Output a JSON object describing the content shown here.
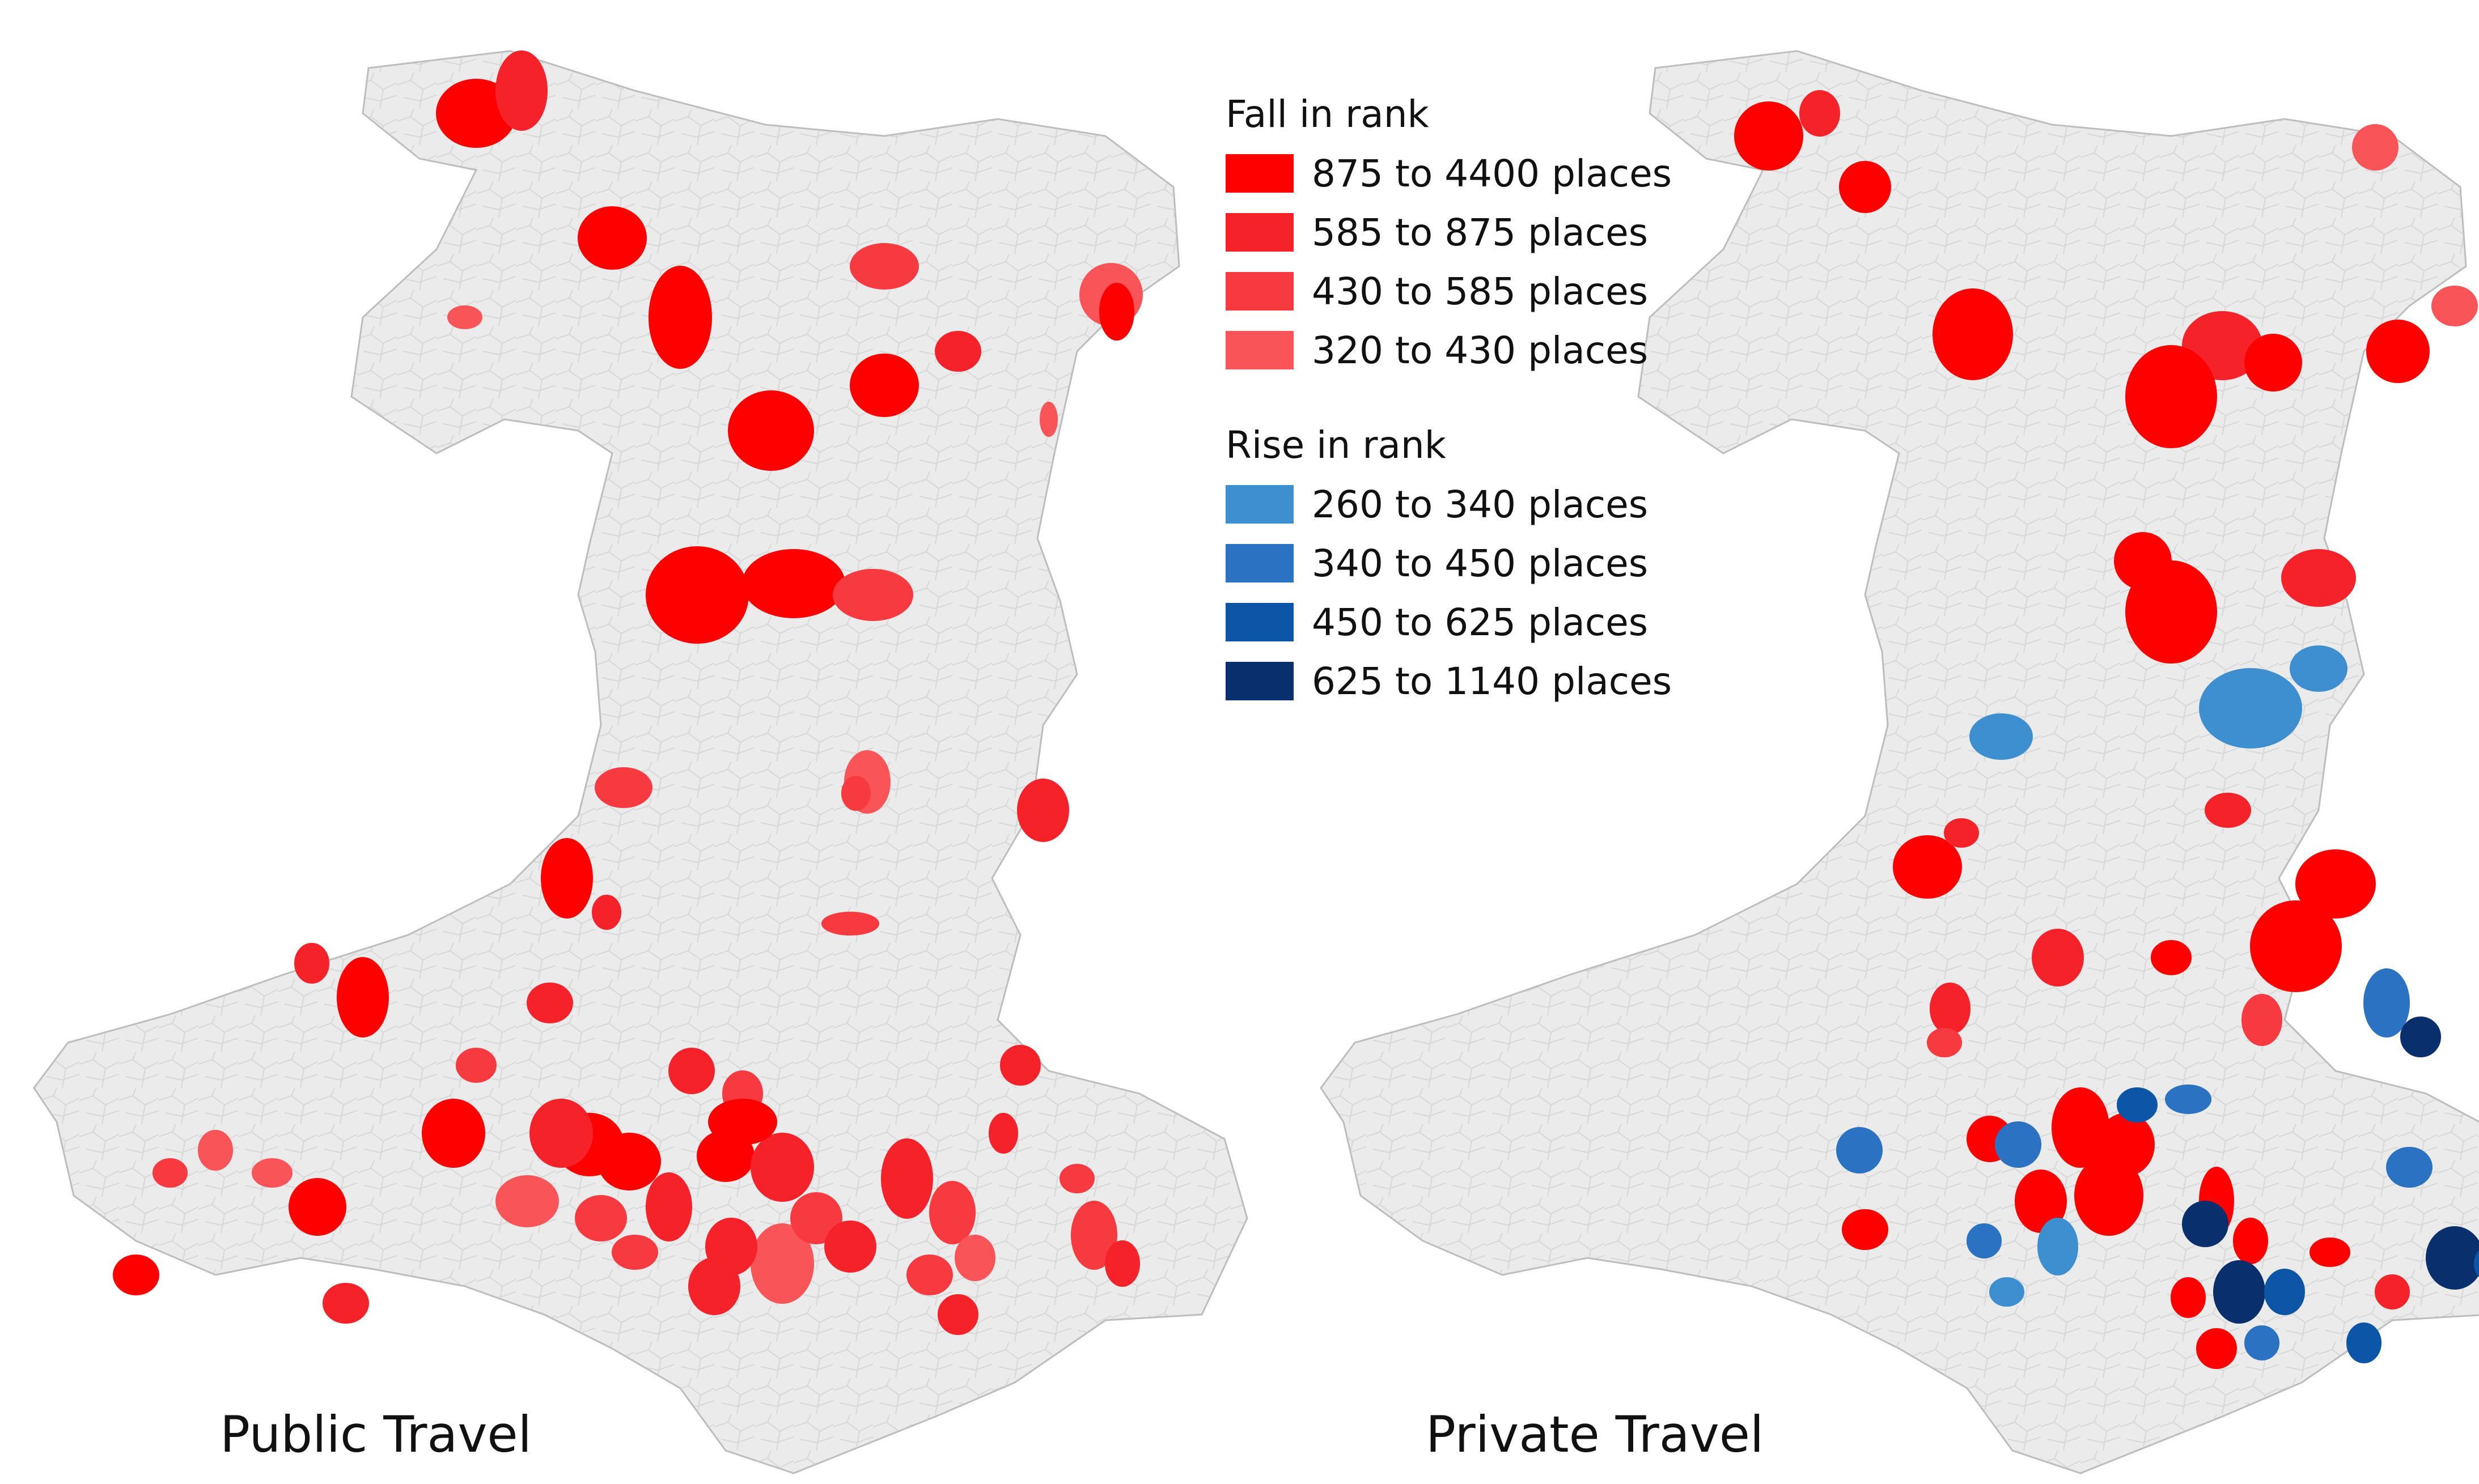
{
  "maps": [
    {
      "label": "Public Travel"
    },
    {
      "label": "Private Travel"
    }
  ],
  "legend": {
    "fall": {
      "heading": "Fall in rank",
      "items": [
        {
          "label": "875 to 4400 places",
          "color": "#ff0000"
        },
        {
          "label": "585 to 875 places",
          "color": "#f5222a"
        },
        {
          "label": "430 to 585 places",
          "color": "#f73a40"
        },
        {
          "label": "320 to 430 places",
          "color": "#f95558"
        }
      ]
    },
    "rise": {
      "heading": "Rise in rank",
      "items": [
        {
          "label": "260 to 340 places",
          "color": "#3d8fcf"
        },
        {
          "label": "340 to 450 places",
          "color": "#2b72c2"
        },
        {
          "label": "450 to 625 places",
          "color": "#0d55a6"
        },
        {
          "label": "625 to 1140 places",
          "color": "#0a2f6d"
        }
      ]
    }
  },
  "colors": {
    "land": "#ebebeb",
    "boundary": "#bdbdbd"
  }
}
